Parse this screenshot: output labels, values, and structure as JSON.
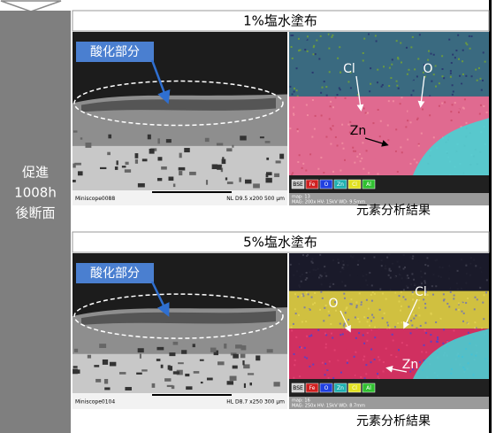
{
  "sidebar": {
    "label_lines": [
      "促進",
      "1008h",
      "後断面"
    ]
  },
  "panels": [
    {
      "title": "1%塩水塗布",
      "sem": {
        "label": "酸化部分",
        "footer_left": "Miniscope0088",
        "footer_right": "NL D9.5 x200 500 μm"
      },
      "eds": {
        "labels": [
          "Cl",
          "O",
          "Zn"
        ],
        "legend": [
          "BSE",
          "Fe",
          "O",
          "Zn",
          "Cl",
          "Al"
        ],
        "info": [
          "map: 13",
          "MAG: 200x HV: 15kV WD: 9.5mm"
        ]
      },
      "caption": "元素分析結果"
    },
    {
      "title": "5%塩水塗布",
      "sem": {
        "label": "酸化部分",
        "footer_left": "Miniscope0104",
        "footer_right": "HL D8.7 x250 300 μm"
      },
      "eds": {
        "labels": [
          "O",
          "Cl",
          "Zn"
        ],
        "legend": [
          "BSE",
          "Fe",
          "O",
          "Zn",
          "Cl",
          "Al"
        ],
        "info": [
          "map: 16",
          "MAG: 250x HV: 15kV WD: 8.7mm"
        ]
      },
      "caption": "元素分析結果"
    }
  ]
}
